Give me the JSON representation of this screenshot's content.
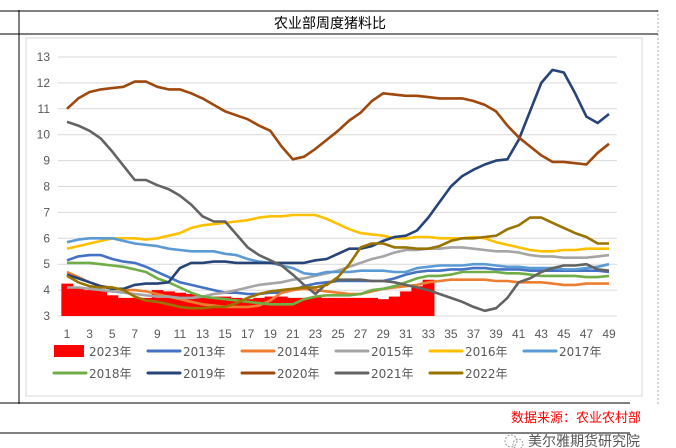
{
  "chart_data": {
    "type": "line",
    "title": "农业部周度猪料比",
    "xlabel": "",
    "ylabel": "",
    "ylim": [
      3,
      13
    ],
    "yticks": [
      3,
      4,
      5,
      6,
      7,
      8,
      9,
      10,
      11,
      12,
      13
    ],
    "xticks": [
      1,
      3,
      5,
      7,
      9,
      11,
      13,
      15,
      17,
      19,
      21,
      23,
      25,
      27,
      29,
      31,
      33,
      35,
      37,
      39,
      41,
      43,
      45,
      47,
      49
    ],
    "grid": true,
    "legend_position": "bottom",
    "series": [
      {
        "name": "2023年",
        "kind": "bar",
        "color": "#ff0000",
        "values": [
          4.25,
          4.1,
          4.0,
          4.0,
          3.8,
          3.7,
          3.7,
          3.7,
          4.0,
          3.95,
          3.9,
          3.85,
          3.8,
          3.75,
          3.75,
          3.7,
          3.65,
          3.7,
          3.75,
          3.75,
          3.7,
          3.7,
          3.75,
          3.7,
          3.7,
          3.7,
          3.7,
          3.7,
          3.65,
          3.75,
          3.95,
          4.15,
          4.4
        ]
      },
      {
        "name": "2013年",
        "color": "#4472c4",
        "values": [
          5.15,
          5.3,
          5.35,
          5.35,
          5.2,
          5.1,
          5.05,
          4.9,
          4.7,
          4.5,
          4.3,
          4.2,
          4.1,
          4.0,
          3.9,
          3.9,
          3.85,
          3.85,
          3.9,
          3.9,
          4.0,
          4.15,
          4.25,
          4.3,
          4.35,
          4.35,
          4.35,
          4.35,
          4.35,
          4.45,
          4.6,
          4.7,
          4.75,
          4.75,
          4.8,
          4.8,
          4.85,
          4.85,
          4.8,
          4.8,
          4.8,
          4.75,
          4.75,
          4.75,
          4.75,
          4.75,
          4.75,
          4.75,
          4.7
        ]
      },
      {
        "name": "2014年",
        "color": "#ed7d31",
        "values": [
          4.7,
          4.5,
          4.3,
          4.15,
          4.1,
          4.0,
          4.0,
          3.95,
          3.85,
          3.75,
          3.65,
          3.55,
          3.45,
          3.4,
          3.35,
          3.35,
          3.35,
          3.4,
          3.6,
          3.9,
          4.0,
          4.05,
          4.0,
          3.95,
          3.9,
          3.85,
          3.85,
          3.95,
          4.05,
          4.1,
          4.15,
          4.2,
          4.3,
          4.35,
          4.4,
          4.4,
          4.4,
          4.4,
          4.35,
          4.35,
          4.3,
          4.3,
          4.3,
          4.25,
          4.2,
          4.2,
          4.25,
          4.25,
          4.25
        ]
      },
      {
        "name": "2015年",
        "color": "#a5a5a5",
        "values": [
          4.1,
          4.1,
          4.05,
          4.0,
          3.95,
          3.9,
          3.85,
          3.8,
          3.75,
          3.75,
          3.7,
          3.7,
          3.75,
          3.85,
          3.9,
          4.0,
          4.1,
          4.2,
          4.25,
          4.3,
          4.4,
          4.45,
          4.55,
          4.65,
          4.75,
          4.9,
          5.05,
          5.2,
          5.3,
          5.45,
          5.55,
          5.55,
          5.6,
          5.6,
          5.65,
          5.65,
          5.6,
          5.55,
          5.5,
          5.5,
          5.45,
          5.35,
          5.3,
          5.3,
          5.25,
          5.25,
          5.25,
          5.3,
          5.35
        ]
      },
      {
        "name": "2016年",
        "color": "#ffc000",
        "values": [
          5.6,
          5.7,
          5.8,
          5.9,
          6.0,
          6.0,
          6.0,
          5.95,
          6.0,
          6.1,
          6.2,
          6.4,
          6.5,
          6.55,
          6.6,
          6.65,
          6.7,
          6.8,
          6.85,
          6.85,
          6.9,
          6.9,
          6.9,
          6.75,
          6.55,
          6.35,
          6.2,
          6.15,
          6.1,
          6.0,
          6.0,
          6.05,
          6.05,
          6.0,
          6.0,
          6.0,
          6.05,
          6.0,
          5.85,
          5.75,
          5.65,
          5.55,
          5.5,
          5.5,
          5.55,
          5.55,
          5.6,
          5.6,
          5.6
        ]
      },
      {
        "name": "2017年",
        "color": "#5b9bd5",
        "values": [
          5.85,
          5.95,
          6.0,
          6.0,
          6.0,
          5.9,
          5.8,
          5.75,
          5.7,
          5.6,
          5.55,
          5.5,
          5.5,
          5.5,
          5.4,
          5.35,
          5.2,
          5.1,
          5.05,
          4.95,
          4.85,
          4.65,
          4.6,
          4.7,
          4.7,
          4.7,
          4.75,
          4.75,
          4.75,
          4.7,
          4.7,
          4.85,
          4.9,
          4.95,
          4.95,
          4.95,
          5.0,
          5.0,
          4.95,
          4.9,
          4.9,
          4.85,
          4.85,
          4.85,
          4.8,
          4.8,
          4.85,
          4.9,
          5.0
        ]
      },
      {
        "name": "2018年",
        "color": "#70ad47",
        "values": [
          5.05,
          5.05,
          5.05,
          5.0,
          4.95,
          4.9,
          4.8,
          4.7,
          4.45,
          4.3,
          4.1,
          3.9,
          3.75,
          3.7,
          3.65,
          3.6,
          3.55,
          3.5,
          3.45,
          3.45,
          3.45,
          3.65,
          3.75,
          3.8,
          3.8,
          3.8,
          3.85,
          4.0,
          4.05,
          4.15,
          4.3,
          4.45,
          4.55,
          4.55,
          4.6,
          4.7,
          4.7,
          4.7,
          4.7,
          4.65,
          4.65,
          4.6,
          4.55,
          4.55,
          4.55,
          4.55,
          4.5,
          4.5,
          4.55
        ]
      },
      {
        "name": "2019年",
        "color": "#264478",
        "values": [
          4.6,
          4.45,
          4.3,
          4.15,
          4.05,
          4.05,
          4.2,
          4.25,
          4.25,
          4.3,
          4.85,
          5.05,
          5.05,
          5.1,
          5.1,
          5.05,
          5.05,
          5.05,
          5.05,
          5.05,
          5.05,
          5.05,
          5.15,
          5.2,
          5.4,
          5.6,
          5.6,
          5.7,
          5.9,
          6.05,
          6.1,
          6.3,
          6.8,
          7.4,
          8.0,
          8.4,
          8.65,
          8.85,
          9.0,
          9.05,
          9.8,
          10.9,
          12.0,
          12.5,
          12.4,
          11.6,
          10.7,
          10.45,
          10.8
        ]
      },
      {
        "name": "2020年",
        "color": "#9e480e",
        "values": [
          11.0,
          11.4,
          11.65,
          11.75,
          11.8,
          11.85,
          12.05,
          12.05,
          11.85,
          11.75,
          11.75,
          11.6,
          11.4,
          11.15,
          10.9,
          10.75,
          10.6,
          10.35,
          10.15,
          9.55,
          9.05,
          9.15,
          9.45,
          9.8,
          10.15,
          10.55,
          10.85,
          11.3,
          11.6,
          11.55,
          11.5,
          11.5,
          11.45,
          11.4,
          11.4,
          11.4,
          11.3,
          11.15,
          10.9,
          10.35,
          9.9,
          9.55,
          9.2,
          8.95,
          8.95,
          8.9,
          8.85,
          9.3,
          9.65
        ]
      },
      {
        "name": "2021年",
        "color": "#636363",
        "values": [
          10.5,
          10.35,
          10.15,
          9.85,
          9.35,
          8.8,
          8.25,
          8.25,
          8.05,
          7.9,
          7.65,
          7.3,
          6.85,
          6.65,
          6.65,
          6.15,
          5.65,
          5.35,
          5.15,
          4.95,
          4.6,
          4.2,
          3.85,
          4.25,
          4.4,
          4.4,
          4.4,
          4.35,
          4.35,
          4.3,
          4.2,
          4.1,
          4.0,
          3.85,
          3.7,
          3.55,
          3.35,
          3.2,
          3.3,
          3.7,
          4.3,
          4.45,
          4.7,
          4.85,
          4.95,
          4.95,
          5.0,
          4.8,
          4.75
        ]
      },
      {
        "name": "2022年",
        "color": "#997300",
        "values": [
          4.55,
          4.3,
          4.15,
          4.1,
          4.1,
          4.0,
          3.75,
          3.6,
          3.55,
          3.45,
          3.35,
          3.3,
          3.3,
          3.35,
          3.35,
          3.5,
          3.7,
          3.85,
          3.95,
          4.0,
          4.05,
          4.1,
          4.1,
          4.2,
          4.5,
          5.0,
          5.65,
          5.8,
          5.8,
          5.65,
          5.65,
          5.6,
          5.6,
          5.7,
          5.9,
          6.0,
          6.0,
          6.05,
          6.1,
          6.35,
          6.5,
          6.8,
          6.8,
          6.6,
          6.4,
          6.2,
          6.05,
          5.8,
          5.8
        ]
      }
    ]
  },
  "source": "数据来源：农业农村部",
  "watermark": "美尔雅期货研究院"
}
